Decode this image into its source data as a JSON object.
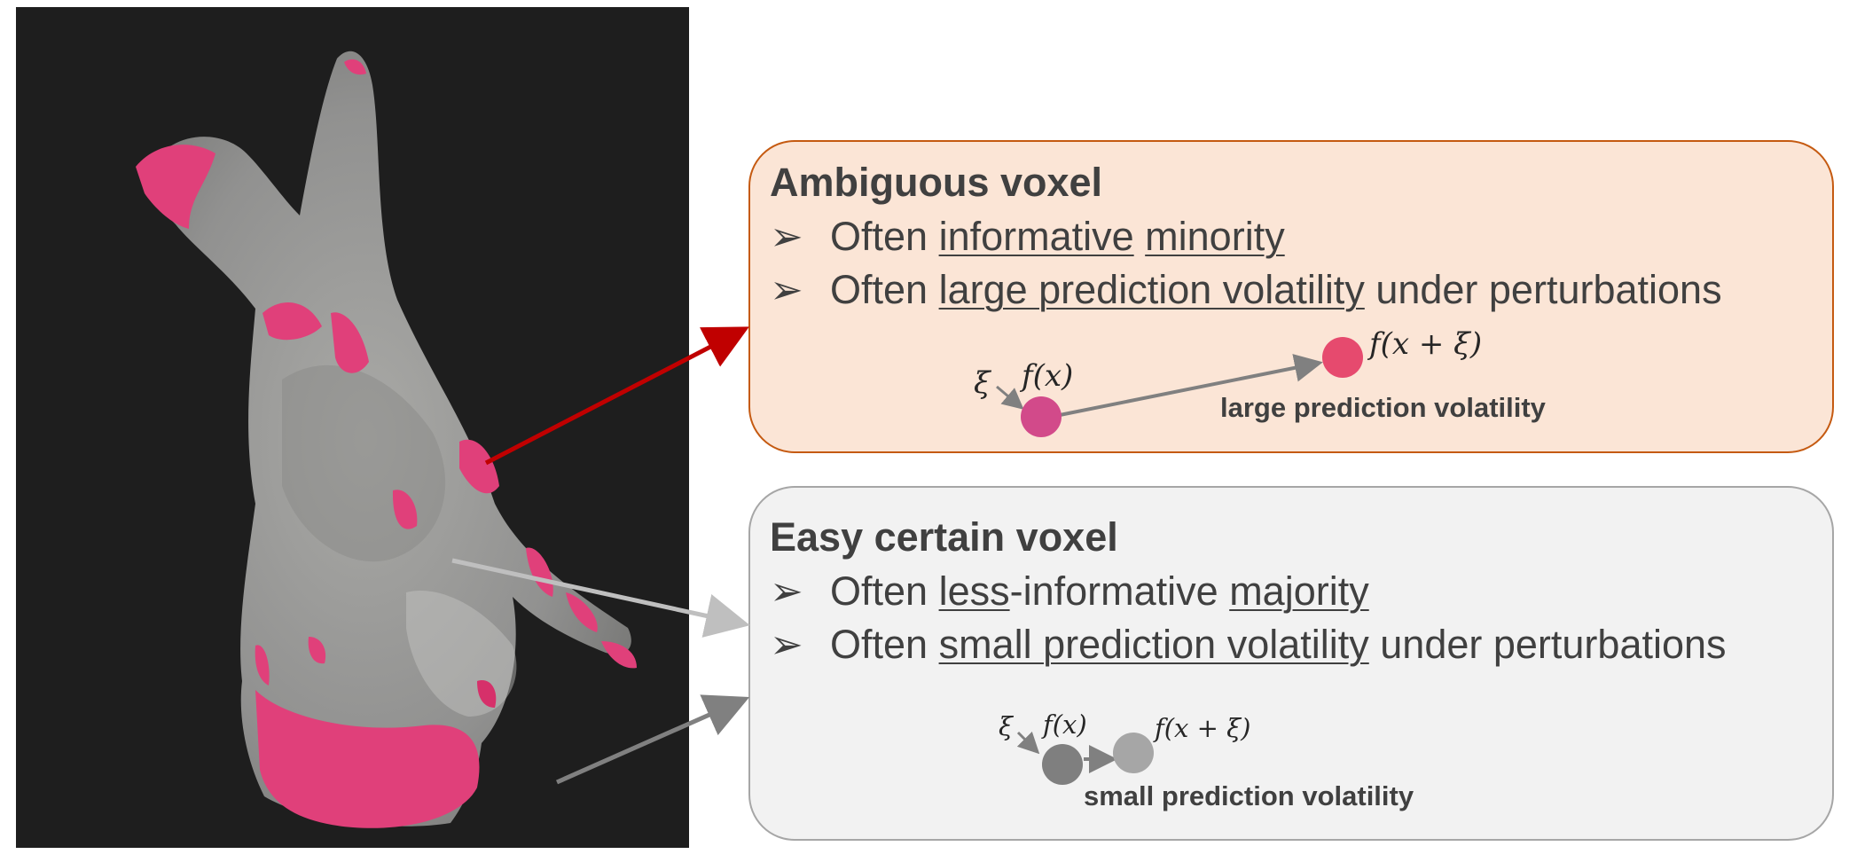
{
  "ambiguous": {
    "title": "Ambiguous voxel",
    "bullet_mark": "➢",
    "b1": {
      "prefix": "Often ",
      "u1": "informative",
      "sep": " ",
      "u2": "minority"
    },
    "b2": {
      "prefix": "Often ",
      "u1": "large prediction volatility",
      "suffix": " under perturbations"
    },
    "xi": "ξ",
    "fx": "f(x)",
    "fxxi": "f(x + ξ)",
    "volatility_label": "large prediction volatility"
  },
  "easy": {
    "title": "Easy certain voxel",
    "bullet_mark": "➢",
    "b1": {
      "prefix": "Often ",
      "u1": "less",
      "mid": "-informative ",
      "u2": "majority"
    },
    "b2": {
      "prefix": "Often ",
      "u1": "small prediction volatility",
      "suffix": " under perturbations"
    },
    "xi": "ξ",
    "fx": "f(x)",
    "fxxi": "f(x + ξ)",
    "volatility_label": "small prediction volatility"
  },
  "colors": {
    "ambiguous_fill": "#fbe5d6",
    "ambiguous_border": "#c55a11",
    "easy_fill": "#f2f2f2",
    "easy_border": "#a6a6a6",
    "highlight_pink": "#e0407a",
    "red_arrow": "#c00000"
  }
}
